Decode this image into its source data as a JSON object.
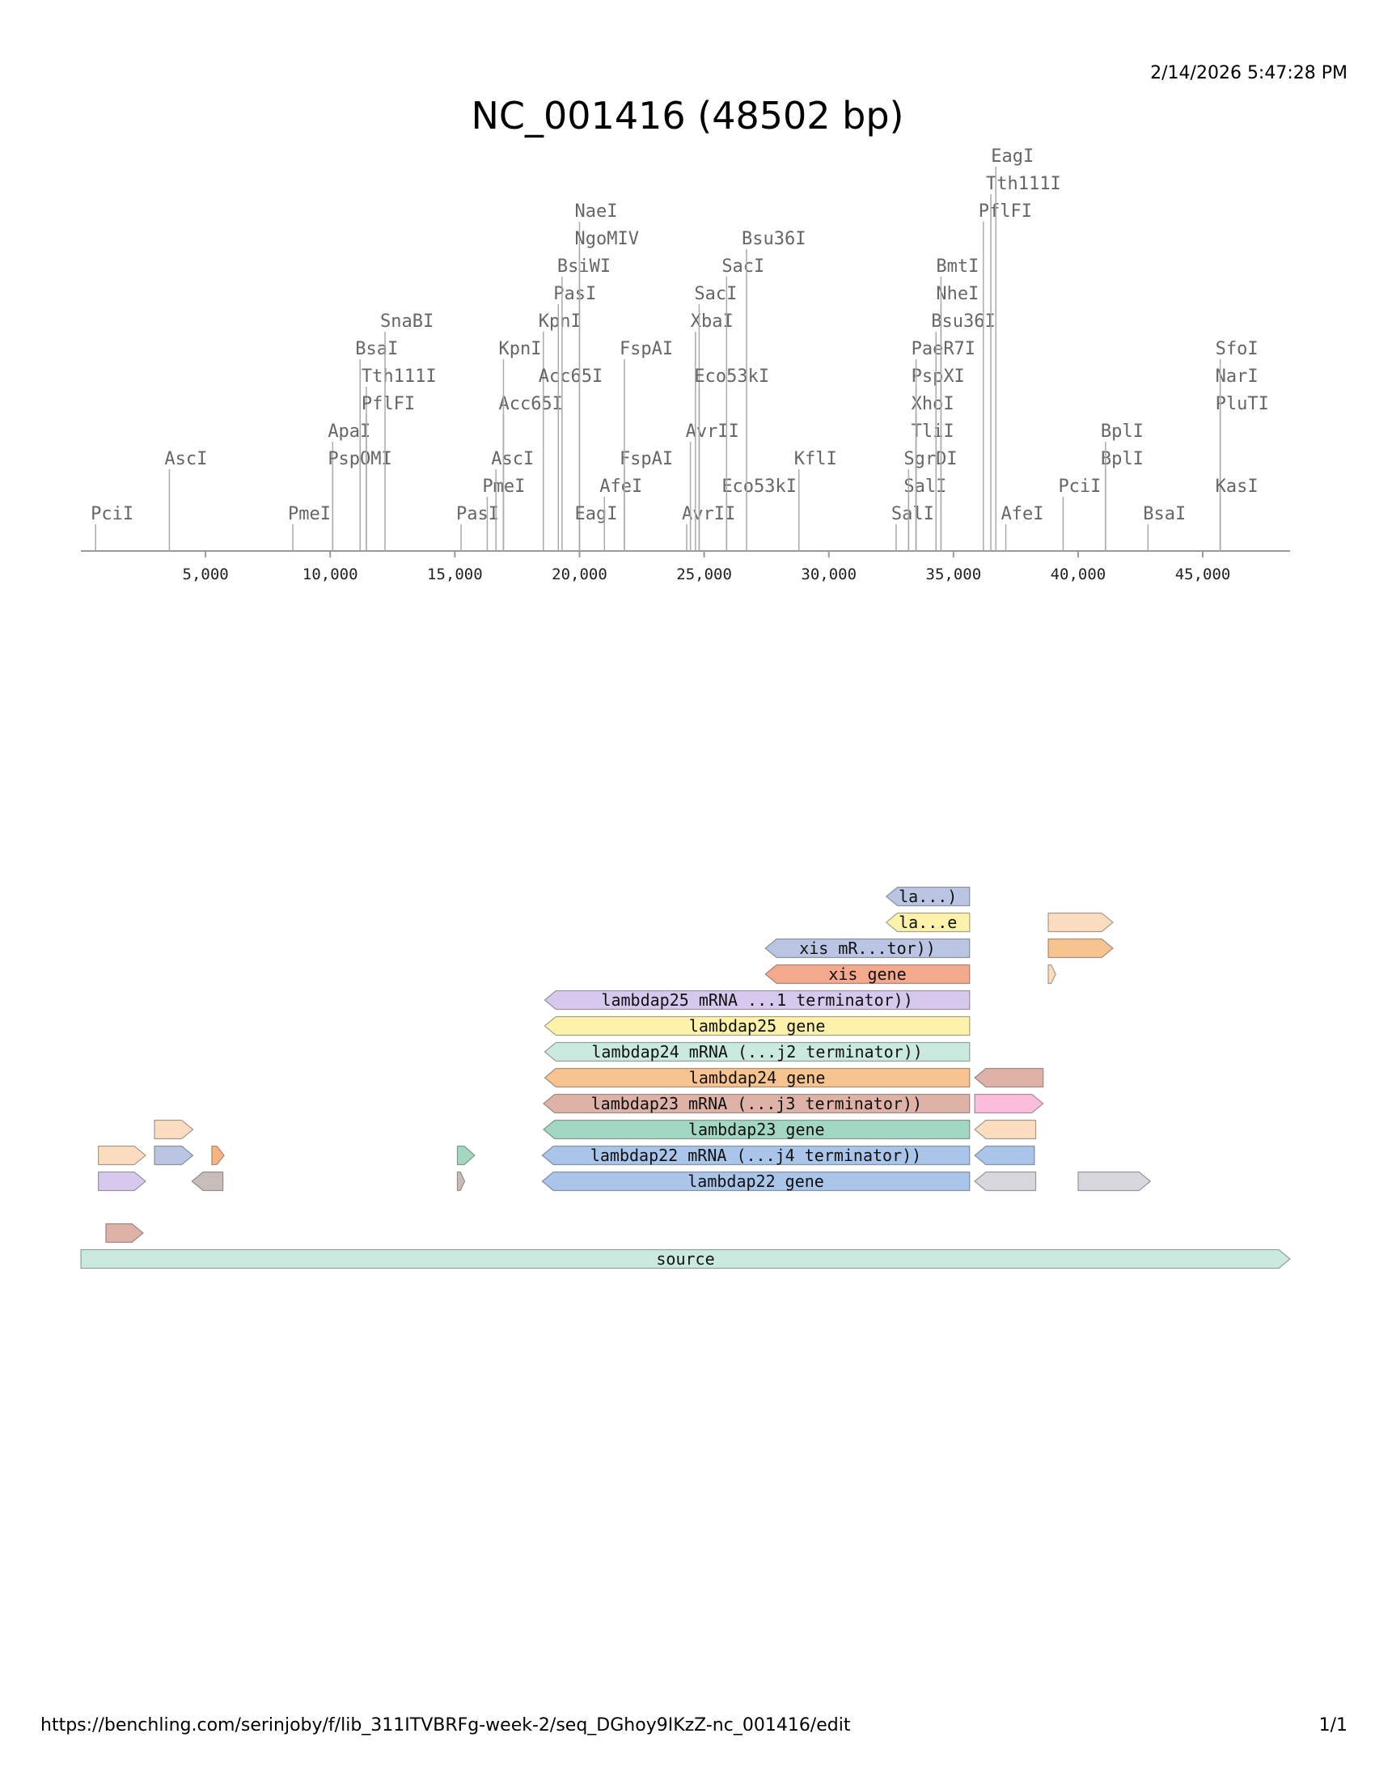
{
  "header": {
    "timestamp": "2/14/2026 5:47:28 PM",
    "title": "NC_001416 (48502 bp)"
  },
  "footer": {
    "url": "https://benchling.com/serinjoby/f/lib_311ITVBRFg-week-2/seq_DGhoy9IKzZ-nc_001416/edit",
    "page": "1/1"
  },
  "sequence": {
    "name": "NC_001416",
    "length_bp": 48502
  },
  "axis": {
    "ticks": [
      5000,
      10000,
      15000,
      20000,
      25000,
      30000,
      35000,
      40000,
      45000
    ],
    "tick_labels": [
      "5,000",
      "10,000",
      "15,000",
      "20,000",
      "25,000",
      "30,000",
      "35,000",
      "40,000",
      "45,000"
    ]
  },
  "restriction_sites": [
    {
      "name": "PciI",
      "pos": 590,
      "level": 1
    },
    {
      "name": "AscI",
      "pos": 3550,
      "level": 3
    },
    {
      "name": "PmeI",
      "pos": 8500,
      "level": 1
    },
    {
      "name": "ApaI",
      "pos": 10100,
      "level": 4
    },
    {
      "name": "PspOMI",
      "pos": 10100,
      "level": 3
    },
    {
      "name": "BsaI",
      "pos": 11200,
      "level": 7
    },
    {
      "name": "Tth111I",
      "pos": 11450,
      "level": 6
    },
    {
      "name": "PflFI",
      "pos": 11450,
      "level": 5
    },
    {
      "name": "SnaBI",
      "pos": 12200,
      "level": 8
    },
    {
      "name": "PasI",
      "pos": 15250,
      "level": 1
    },
    {
      "name": "PmeI",
      "pos": 16300,
      "level": 2
    },
    {
      "name": "AscI",
      "pos": 16650,
      "level": 3
    },
    {
      "name": "Acc65I",
      "pos": 16950,
      "level": 5
    },
    {
      "name": "KpnI",
      "pos": 16950,
      "level": 7
    },
    {
      "name": "KpnI",
      "pos": 18550,
      "level": 8
    },
    {
      "name": "Acc65I",
      "pos": 18550,
      "level": 6
    },
    {
      "name": "PasI",
      "pos": 19150,
      "level": 9
    },
    {
      "name": "BsiWI",
      "pos": 19300,
      "level": 10
    },
    {
      "name": "NaeI",
      "pos": 20000,
      "level": 12
    },
    {
      "name": "NgoMIV",
      "pos": 20000,
      "level": 11
    },
    {
      "name": "EagI",
      "pos": 20000,
      "level": 1
    },
    {
      "name": "AfeI",
      "pos": 21000,
      "level": 2
    },
    {
      "name": "FspAI",
      "pos": 21800,
      "level": 3
    },
    {
      "name": "FspAI",
      "pos": 21800,
      "level": 7
    },
    {
      "name": "AvrII",
      "pos": 24300,
      "level": 1
    },
    {
      "name": "AvrII",
      "pos": 24450,
      "level": 4
    },
    {
      "name": "XbaI",
      "pos": 24650,
      "level": 8
    },
    {
      "name": "SacI",
      "pos": 24800,
      "level": 9
    },
    {
      "name": "Eco53kI",
      "pos": 24800,
      "level": 6
    },
    {
      "name": "Eco53kI",
      "pos": 25900,
      "level": 2
    },
    {
      "name": "SacI",
      "pos": 25900,
      "level": 10
    },
    {
      "name": "Bsu36I",
      "pos": 26700,
      "level": 11
    },
    {
      "name": "KflI",
      "pos": 28800,
      "level": 3
    },
    {
      "name": "SalI",
      "pos": 32700,
      "level": 1
    },
    {
      "name": "SalI",
      "pos": 33200,
      "level": 2
    },
    {
      "name": "SgrDI",
      "pos": 33200,
      "level": 3
    },
    {
      "name": "TliI",
      "pos": 33500,
      "level": 4
    },
    {
      "name": "XhoI",
      "pos": 33500,
      "level": 5
    },
    {
      "name": "PspXI",
      "pos": 33500,
      "level": 6
    },
    {
      "name": "PaeR7I",
      "pos": 33500,
      "level": 7
    },
    {
      "name": "Bsu36I",
      "pos": 34300,
      "level": 8
    },
    {
      "name": "NheI",
      "pos": 34500,
      "level": 9
    },
    {
      "name": "BmtI",
      "pos": 34500,
      "level": 10
    },
    {
      "name": "PflFI",
      "pos": 36200,
      "level": 12
    },
    {
      "name": "Tth111I",
      "pos": 36500,
      "level": 13
    },
    {
      "name": "EagI",
      "pos": 36700,
      "level": 14
    },
    {
      "name": "AfeI",
      "pos": 37100,
      "level": 1
    },
    {
      "name": "PciI",
      "pos": 39400,
      "level": 2
    },
    {
      "name": "BplI",
      "pos": 41100,
      "level": 3
    },
    {
      "name": "BplI",
      "pos": 41100,
      "level": 4
    },
    {
      "name": "BsaI",
      "pos": 42800,
      "level": 1
    },
    {
      "name": "PluTI",
      "pos": 45700,
      "level": 5
    },
    {
      "name": "NarI",
      "pos": 45700,
      "level": 6
    },
    {
      "name": "SfoI",
      "pos": 45700,
      "level": 7
    },
    {
      "name": "KasI",
      "pos": 45700,
      "level": 2
    }
  ],
  "features": [
    {
      "label": "source",
      "start": 1,
      "end": 48502,
      "strand": 1,
      "row": 0,
      "color": "#cbeadf"
    },
    {
      "label": "lambdap22 gene",
      "start": 18500,
      "end": 35650,
      "strand": -1,
      "row": 3,
      "color": "#a9c5ea"
    },
    {
      "label": "lambdap22 mRNA (...j4 terminator))",
      "start": 18500,
      "end": 35650,
      "strand": -1,
      "row": 4,
      "color": "#a9c5ea"
    },
    {
      "label": "lambdap23 gene",
      "start": 18550,
      "end": 35650,
      "strand": -1,
      "row": 5,
      "color": "#a2d8c1"
    },
    {
      "label": "lambdap23 mRNA (...j3 terminator))",
      "start": 18550,
      "end": 35650,
      "strand": -1,
      "row": 6,
      "color": "#dfb2a8"
    },
    {
      "label": "lambdap24 gene",
      "start": 18600,
      "end": 35650,
      "strand": -1,
      "row": 7,
      "color": "#f7c38e"
    },
    {
      "label": "lambdap24 mRNA (...j2 terminator))",
      "start": 18600,
      "end": 35650,
      "strand": -1,
      "row": 8,
      "color": "#cbeadf"
    },
    {
      "label": "lambdap25 gene",
      "start": 18600,
      "end": 35650,
      "strand": -1,
      "row": 9,
      "color": "#fdf2aa"
    },
    {
      "label": "lambdap25 mRNA ...1 terminator))",
      "start": 18600,
      "end": 35650,
      "strand": -1,
      "row": 10,
      "color": "#d7c9ed"
    },
    {
      "label": "xis gene",
      "start": 27450,
      "end": 35650,
      "strand": -1,
      "row": 11,
      "color": "#f4a98c"
    },
    {
      "label": "xis mR...tor))",
      "start": 27450,
      "end": 35650,
      "strand": -1,
      "row": 12,
      "color": "#b9c5e2"
    },
    {
      "label": "la...e",
      "start": 32300,
      "end": 35650,
      "strand": -1,
      "row": 13,
      "color": "#fdf2aa"
    },
    {
      "label": "la...)",
      "start": 32300,
      "end": 35650,
      "strand": -1,
      "row": 14,
      "color": "#b9c5e2"
    },
    {
      "label": "",
      "start": 700,
      "end": 2600,
      "strand": 1,
      "row": 3,
      "color": "#d7c9ed"
    },
    {
      "label": "",
      "start": 4450,
      "end": 5700,
      "strand": -1,
      "row": 3,
      "color": "#c9bdbb"
    },
    {
      "label": "",
      "start": 15100,
      "end": 15400,
      "strand": 1,
      "row": 3,
      "color": "#c9bdbb"
    },
    {
      "label": "",
      "start": 700,
      "end": 2600,
      "strand": 1,
      "row": 4,
      "color": "#fbdcbe"
    },
    {
      "label": "",
      "start": 2950,
      "end": 4500,
      "strand": 1,
      "row": 4,
      "color": "#b9c5e2"
    },
    {
      "label": "",
      "start": 5250,
      "end": 5750,
      "strand": 1,
      "row": 4,
      "color": "#f7b480"
    },
    {
      "label": "",
      "start": 15100,
      "end": 15800,
      "strand": 1,
      "row": 4,
      "color": "#a2d8c1"
    },
    {
      "label": "",
      "start": 2950,
      "end": 4500,
      "strand": 1,
      "row": 5,
      "color": "#fbdcbe"
    },
    {
      "label": "",
      "start": 1000,
      "end": 2500,
      "strand": 1,
      "row": 1,
      "color": "#dfb2a8"
    },
    {
      "label": "",
      "start": 35850,
      "end": 38300,
      "strand": -1,
      "row": 3,
      "color": "#d7d7dd"
    },
    {
      "label": "",
      "start": 35850,
      "end": 38250,
      "strand": -1,
      "row": 4,
      "color": "#a9c5ea"
    },
    {
      "label": "",
      "start": 35850,
      "end": 38300,
      "strand": -1,
      "row": 5,
      "color": "#fbdcbe"
    },
    {
      "label": "",
      "start": 35850,
      "end": 38600,
      "strand": 1,
      "row": 6,
      "color": "#fcbcdc"
    },
    {
      "label": "",
      "start": 35850,
      "end": 38600,
      "strand": -1,
      "row": 7,
      "color": "#dfb2a8"
    },
    {
      "label": "",
      "start": 38800,
      "end": 39100,
      "strand": 1,
      "row": 11,
      "color": "#fbdcbe"
    },
    {
      "label": "",
      "start": 38800,
      "end": 41400,
      "strand": 1,
      "row": 12,
      "color": "#f7c38e"
    },
    {
      "label": "",
      "start": 38800,
      "end": 41400,
      "strand": 1,
      "row": 13,
      "color": "#fbdcbe"
    },
    {
      "label": "",
      "start": 40000,
      "end": 42900,
      "strand": 1,
      "row": 3,
      "color": "#d7d7dd"
    }
  ],
  "legend_note": "Benchling linear map view"
}
